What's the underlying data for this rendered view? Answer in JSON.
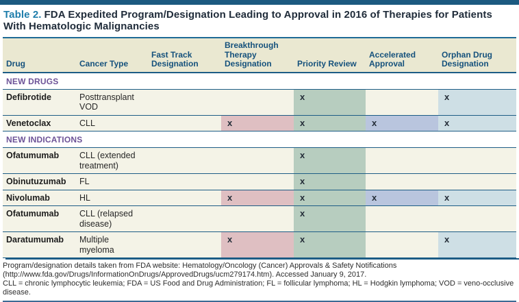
{
  "title": {
    "label": "Table 2.",
    "text": "FDA Expedited Program/Designation Leading to Approval in 2016 of Therapies for Patients With Hematologic Malignancies"
  },
  "table": {
    "columns": [
      {
        "key": "drug",
        "label": "Drug"
      },
      {
        "key": "cancer_type",
        "label": "Cancer Type"
      },
      {
        "key": "fast_track",
        "label": "Fast Track Designation"
      },
      {
        "key": "breakthrough",
        "label": "Breakthrough Therapy Designation"
      },
      {
        "key": "priority",
        "label": "Priority Review"
      },
      {
        "key": "accelerated",
        "label": "Accelerated Approval"
      },
      {
        "key": "orphan",
        "label": "Orphan Drug Designation"
      }
    ],
    "mark_glyph": "x",
    "highlight_colors": {
      "fast_track": "#dfbfc2",
      "breakthrough": "#dfbfc2",
      "priority": "#b7cdbf",
      "accelerated": "#b9c5de",
      "orphan": "#cedfe5"
    },
    "sections": [
      {
        "header": "NEW DRUGS",
        "rows": [
          {
            "drug": "Defibrotide",
            "cancer_type": "Posttransplant VOD",
            "marks": {
              "fast_track": false,
              "breakthrough": false,
              "priority": true,
              "accelerated": false,
              "orphan": true
            }
          },
          {
            "drug": "Venetoclax",
            "cancer_type": "CLL",
            "marks": {
              "fast_track": false,
              "breakthrough": true,
              "priority": true,
              "accelerated": true,
              "orphan": true
            }
          }
        ]
      },
      {
        "header": "NEW INDICATIONS",
        "rows": [
          {
            "drug": "Ofatumumab",
            "cancer_type": "CLL (extended treatment)",
            "marks": {
              "fast_track": false,
              "breakthrough": false,
              "priority": true,
              "accelerated": false,
              "orphan": false
            }
          },
          {
            "drug": "Obinutuzumab",
            "cancer_type": "FL",
            "marks": {
              "fast_track": false,
              "breakthrough": false,
              "priority": true,
              "accelerated": false,
              "orphan": false
            }
          },
          {
            "drug": "Nivolumab",
            "cancer_type": "HL",
            "marks": {
              "fast_track": false,
              "breakthrough": true,
              "priority": true,
              "accelerated": true,
              "orphan": true
            }
          },
          {
            "drug": "Ofatumumab",
            "cancer_type": "CLL (relapsed disease)",
            "marks": {
              "fast_track": false,
              "breakthrough": false,
              "priority": true,
              "accelerated": false,
              "orphan": false
            }
          },
          {
            "drug": "Daratumumab",
            "cancer_type": "Multiple myeloma",
            "marks": {
              "fast_track": false,
              "breakthrough": true,
              "priority": true,
              "accelerated": false,
              "orphan": true
            }
          }
        ]
      }
    ]
  },
  "footnotes": {
    "source": "Program/designation details taken from FDA website: Hematology/Oncology (Cancer) Approvals & Safety Notifications (http://www.fda.gov/Drugs/InformationOnDrugs/ApprovedDrugs/ucm279174.htm). Accessed January 9, 2017.",
    "abbreviations": "CLL = chronic lymphocytic leukemia; FDA = US Food and Drug Administration; FL = follicular lymphoma; HL = Hodgkin lymphoma; VOD = veno-occlusive disease."
  },
  "colors": {
    "top_bar": "#1c5a80",
    "title_label": "#1e7dab",
    "header_bg": "#eae8d1",
    "header_text": "#15517c",
    "row_bg": "#f4f3e7",
    "section_text": "#6c5297",
    "rule": "#1c5c85"
  }
}
